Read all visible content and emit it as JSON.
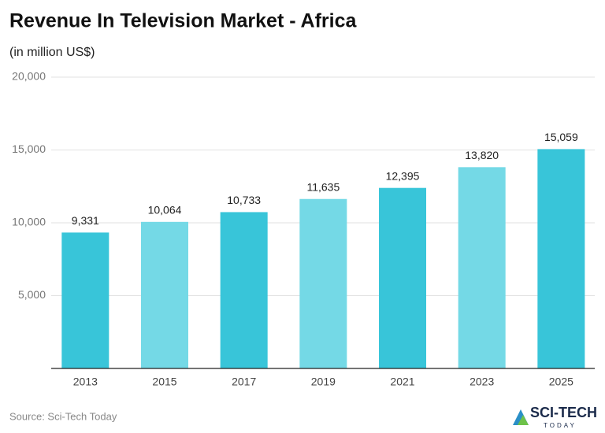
{
  "chart_data": {
    "type": "bar",
    "title": "Revenue In Television Market - Africa",
    "subtitle": "(in million US$)",
    "categories": [
      "2013",
      "2015",
      "2017",
      "2019",
      "2021",
      "2023",
      "2025"
    ],
    "values": [
      9331,
      10064,
      10733,
      11635,
      12395,
      13820,
      15059
    ],
    "value_labels": [
      "9,331",
      "10,064",
      "10,733",
      "11,635",
      "12,395",
      "13,820",
      "15,059"
    ],
    "colors": [
      "#38c5d9",
      "#74d9e6",
      "#38c5d9",
      "#74d9e6",
      "#38c5d9",
      "#74d9e6",
      "#38c5d9"
    ],
    "ylim": [
      0,
      20000
    ],
    "yticks": [
      {
        "value": 5000,
        "label": "5,000"
      },
      {
        "value": 10000,
        "label": "10,000"
      },
      {
        "value": 15000,
        "label": "15,000"
      },
      {
        "value": 20000,
        "label": "20,000"
      }
    ],
    "grid": true,
    "source": "Source: Sci-Tech Today",
    "logo": {
      "name": "SCI-TECH",
      "tagline": "TODAY"
    }
  }
}
